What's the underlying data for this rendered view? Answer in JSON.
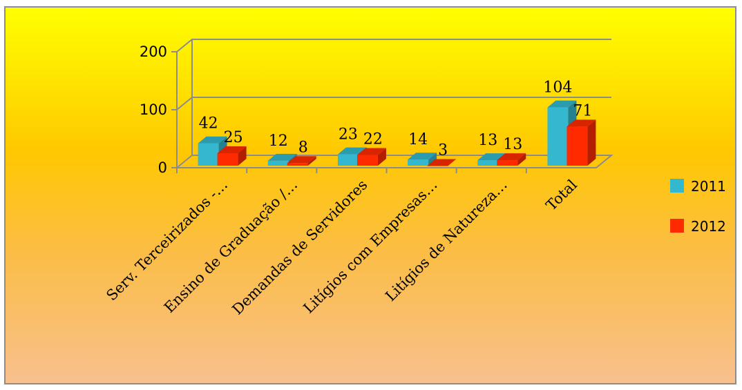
{
  "chart_data": {
    "type": "bar",
    "title": "",
    "xlabel": "",
    "ylabel": "",
    "categories": [
      "Serv. Terceirizados -…",
      "Ensino de Graduação /…",
      "Demandas de Servidores",
      "Litígios com Empresas…",
      "Litígios de Natureza…",
      "Total"
    ],
    "series": [
      {
        "name": "2011",
        "values": [
          42,
          12,
          23,
          14,
          13,
          104
        ],
        "color": "#33b8cf"
      },
      {
        "name": "2012",
        "values": [
          25,
          8,
          22,
          3,
          13,
          71
        ],
        "color": "#ff2a00"
      }
    ],
    "data_labels": [
      [
        "42",
        "12",
        "23",
        "14",
        "13",
        "104"
      ],
      [
        "25",
        "8",
        "22",
        "3",
        "13",
        "71"
      ]
    ],
    "y_ticks": [
      "0",
      "100",
      "200"
    ],
    "ylim": [
      0,
      200
    ],
    "grid": true,
    "legend": "right",
    "style": "3d"
  }
}
